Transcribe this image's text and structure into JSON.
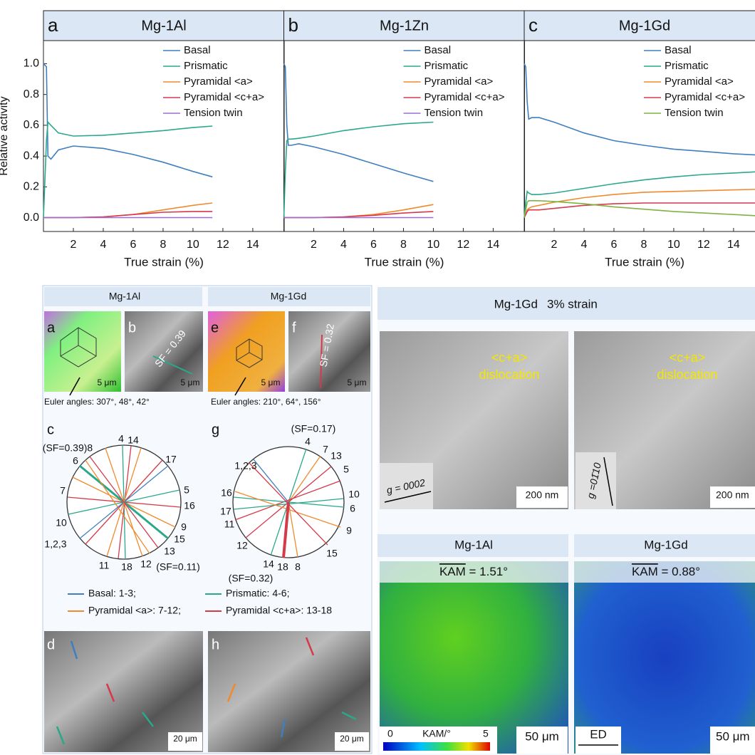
{
  "chart_data": [
    {
      "type": "line",
      "label": "a",
      "title": "Mg-1Al",
      "ylabel": "Relative activity",
      "xlabel": "True strain (%)",
      "x": [
        0,
        0.2,
        0.3,
        0.5,
        1,
        2,
        4,
        6,
        8,
        10,
        11.3
      ],
      "series": [
        {
          "name": "Basal",
          "color": "#3f7fbf",
          "values": [
            1.0,
            0.98,
            0.4,
            0.38,
            0.44,
            0.465,
            0.45,
            0.41,
            0.36,
            0.3,
            0.265
          ]
        },
        {
          "name": "Prismatic",
          "color": "#2aa88a",
          "values": [
            0,
            0.5,
            0.62,
            0.6,
            0.55,
            0.53,
            0.535,
            0.55,
            0.565,
            0.585,
            0.595
          ]
        },
        {
          "name": "Pyramidal <a>",
          "color": "#f08a2e",
          "values": [
            0,
            0,
            0,
            0,
            0,
            0,
            0.005,
            0.02,
            0.05,
            0.08,
            0.095
          ]
        },
        {
          "name": "Pyramidal <c+a>",
          "color": "#d43a4a",
          "values": [
            0,
            0,
            0,
            0,
            0,
            0,
            0.005,
            0.02,
            0.035,
            0.04,
            0.04
          ]
        },
        {
          "name": "Tension twin",
          "color": "#9b6fd0",
          "values": [
            0,
            0,
            0,
            0,
            0,
            0,
            0,
            0,
            0,
            0,
            0
          ]
        }
      ],
      "xlim": [
        0,
        16.1
      ],
      "ylim": [
        -0.09,
        1.15
      ],
      "xticks": [
        2,
        4,
        6,
        8,
        10,
        12,
        14
      ],
      "yticks": [
        {
          "value": 0,
          "label": "0.0"
        },
        0.2,
        0.4,
        0.6,
        0.8,
        {
          "value": 1,
          "label": "1.0"
        }
      ]
    },
    {
      "type": "line",
      "label": "b",
      "title": "Mg-1Zn",
      "xlabel": "True strain (%)",
      "x": [
        0,
        0.1,
        0.2,
        0.3,
        0.5,
        1,
        2,
        4,
        6,
        8,
        10
      ],
      "series": [
        {
          "name": "Basal",
          "color": "#3f7fbf",
          "values": [
            1.0,
            0.98,
            0.6,
            0.47,
            0.47,
            0.48,
            0.46,
            0.41,
            0.35,
            0.29,
            0.235
          ]
        },
        {
          "name": "Prismatic",
          "color": "#2aa88a",
          "values": [
            0,
            0.3,
            0.5,
            0.51,
            0.51,
            0.515,
            0.53,
            0.565,
            0.59,
            0.61,
            0.62
          ]
        },
        {
          "name": "Pyramidal <a>",
          "color": "#f08a2e",
          "values": [
            0,
            0,
            0,
            0,
            0,
            0,
            0,
            0.005,
            0.02,
            0.05,
            0.085
          ]
        },
        {
          "name": "Pyramidal <c+a>",
          "color": "#d43a4a",
          "values": [
            0,
            0,
            0,
            0,
            0,
            0,
            0,
            0.005,
            0.015,
            0.03,
            0.04
          ]
        },
        {
          "name": "Tension twin",
          "color": "#9b6fd0",
          "values": [
            0,
            0,
            0,
            0,
            0,
            0,
            0,
            0,
            0,
            0,
            0
          ]
        }
      ],
      "xlim": [
        0,
        16.1
      ],
      "ylim": [
        -0.09,
        1.15
      ],
      "xticks": [
        2,
        4,
        6,
        8,
        10,
        12,
        14
      ]
    },
    {
      "type": "line",
      "label": "c",
      "title": "Mg-1Gd",
      "xlabel": "True strain (%)",
      "x": [
        0,
        0.1,
        0.2,
        0.3,
        0.5,
        1,
        2,
        4,
        6,
        8,
        10,
        12,
        14,
        16
      ],
      "series": [
        {
          "name": "Basal",
          "color": "#3f7fbf",
          "values": [
            1.0,
            0.98,
            0.75,
            0.64,
            0.65,
            0.65,
            0.62,
            0.55,
            0.5,
            0.47,
            0.445,
            0.43,
            0.415,
            0.405
          ]
        },
        {
          "name": "Prismatic",
          "color": "#2aa88a",
          "values": [
            0,
            0.1,
            0.17,
            0.16,
            0.15,
            0.15,
            0.16,
            0.19,
            0.22,
            0.245,
            0.265,
            0.28,
            0.29,
            0.3
          ]
        },
        {
          "name": "Pyramidal <a>",
          "color": "#f08a2e",
          "values": [
            0,
            0.02,
            0.05,
            0.06,
            0.07,
            0.08,
            0.1,
            0.13,
            0.15,
            0.165,
            0.17,
            0.175,
            0.18,
            0.185
          ]
        },
        {
          "name": "Pyramidal <c+a>",
          "color": "#d43a4a",
          "values": [
            0,
            0.02,
            0.04,
            0.05,
            0.05,
            0.05,
            0.06,
            0.08,
            0.09,
            0.095,
            0.095,
            0.095,
            0.095,
            0.095
          ]
        },
        {
          "name": "Tension twin",
          "color": "#7cb342",
          "values": [
            0,
            0.05,
            0.1,
            0.11,
            0.11,
            0.11,
            0.105,
            0.09,
            0.07,
            0.055,
            0.04,
            0.03,
            0.02,
            0.01
          ]
        }
      ],
      "xlim": [
        0,
        16.1
      ],
      "ylim": [
        -0.09,
        1.15
      ],
      "xticks": [
        2,
        4,
        6,
        8,
        10,
        12,
        14
      ]
    }
  ],
  "lower_left": {
    "headers": [
      "Mg-1Al",
      "Mg-1Gd"
    ],
    "panel_labels": [
      "a",
      "b",
      "e",
      "f",
      "c",
      "g",
      "d",
      "h"
    ],
    "sf_labels": [
      "SF = 0.39",
      "SF = 0.32"
    ],
    "scale_5um": "5 μm",
    "euler": [
      "Euler angles: 307°, 48°, 42°",
      "Euler angles: 210°, 64°, 156°"
    ],
    "pole_c": [
      "4",
      "14",
      "17",
      "5",
      "16",
      "9",
      "15",
      "13",
      "(SF=0.11)",
      "12",
      "18",
      "11",
      "1,2,3",
      "10",
      "7",
      "6",
      "(SF=0.39)8"
    ],
    "pole_g": [
      "(SF=0.17)",
      "4",
      "7",
      "13",
      "5",
      "10",
      "6",
      "9",
      "15",
      "8",
      "18",
      "14",
      "(SF=0.32)",
      "12",
      "11",
      "17",
      "16",
      "1,2,3"
    ],
    "legend": [
      "Basal: 1-3;",
      "Prismatic: 4-6;",
      "Pyramidal <a>: 7-12;",
      "Pyramidal <c+a>: 13-18"
    ],
    "scale_20um": "20 μm"
  },
  "lower_right": {
    "tem_title": [
      "Mg-1Gd",
      "3% strain"
    ],
    "tem_labels": [
      "<c+a>",
      "dislocation"
    ],
    "g_vectors": [
      "g = 0002",
      "g =01̄10"
    ],
    "scale_200nm": "200 nm",
    "kam_headers": [
      "Mg-1Al",
      "Mg-1Gd"
    ],
    "kam_symbol": "KAM",
    "kam_values": [
      " = 1.51°",
      " = 0.88°"
    ],
    "colorbar": [
      "0",
      "KAM/°",
      "5"
    ],
    "scale_50um": "50 μm",
    "ed": "ED"
  }
}
